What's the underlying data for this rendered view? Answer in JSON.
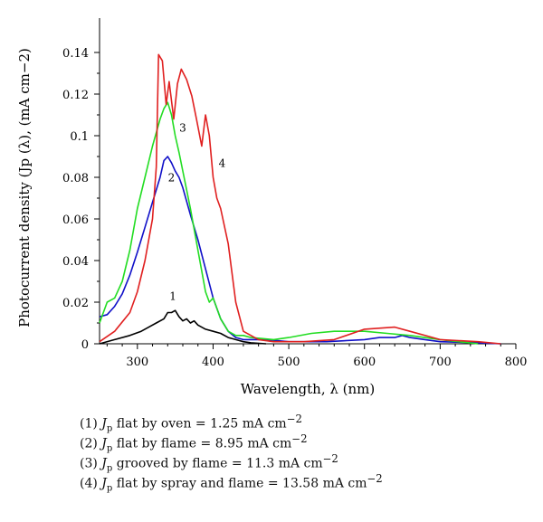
{
  "chart_data": {
    "type": "line",
    "xlabel": "Wavelength, λ (nm)",
    "ylabel": "Photocurrent density (Jp (λ), (mA cm−2)",
    "xlim": [
      250,
      800
    ],
    "ylim": [
      0,
      0.15
    ],
    "xticks": [
      "300",
      "400",
      "500",
      "600",
      "700",
      "800"
    ],
    "xtick_values": [
      300,
      400,
      500,
      600,
      700,
      800
    ],
    "yticks": [
      "0",
      "0.02",
      "0.04",
      "0.06",
      "0.08",
      "0.1",
      "0.12",
      "0.14"
    ],
    "ytick_values": [
      0,
      0.02,
      0.04,
      0.06,
      0.08,
      0.1,
      0.12,
      0.14
    ],
    "grid": false,
    "series": [
      {
        "name": "1",
        "color": "#000000",
        "x": [
          250,
          270,
          290,
          305,
          315,
          325,
          335,
          340,
          345,
          350,
          355,
          360,
          365,
          370,
          375,
          380,
          390,
          400,
          410,
          420,
          430,
          440,
          450,
          470
        ],
        "y": [
          0.0,
          0.002,
          0.004,
          0.006,
          0.008,
          0.01,
          0.012,
          0.015,
          0.015,
          0.016,
          0.013,
          0.011,
          0.012,
          0.01,
          0.011,
          0.009,
          0.007,
          0.006,
          0.005,
          0.003,
          0.002,
          0.001,
          0.0005,
          0.0
        ]
      },
      {
        "name": "2",
        "color": "#1010c8",
        "x": [
          250,
          260,
          270,
          280,
          290,
          300,
          310,
          320,
          330,
          335,
          340,
          345,
          350,
          355,
          360,
          370,
          380,
          390,
          400,
          410,
          420,
          430,
          440,
          450,
          470,
          500,
          550,
          600,
          620,
          640,
          650,
          660,
          680,
          700,
          750,
          780
        ],
        "y": [
          0.013,
          0.014,
          0.018,
          0.024,
          0.033,
          0.044,
          0.056,
          0.068,
          0.08,
          0.088,
          0.09,
          0.087,
          0.083,
          0.08,
          0.075,
          0.062,
          0.05,
          0.036,
          0.022,
          0.012,
          0.006,
          0.003,
          0.002,
          0.002,
          0.002,
          0.001,
          0.001,
          0.002,
          0.003,
          0.003,
          0.004,
          0.003,
          0.002,
          0.001,
          0.0005,
          0.0
        ]
      },
      {
        "name": "3",
        "color": "#22dd22",
        "x": [
          250,
          260,
          270,
          280,
          290,
          300,
          310,
          320,
          330,
          335,
          340,
          345,
          350,
          355,
          360,
          370,
          380,
          390,
          395,
          400,
          410,
          420,
          430,
          440,
          450,
          480,
          500,
          530,
          560,
          600,
          630,
          660,
          700,
          750
        ],
        "y": [
          0.01,
          0.02,
          0.022,
          0.03,
          0.045,
          0.065,
          0.08,
          0.095,
          0.108,
          0.113,
          0.116,
          0.11,
          0.1,
          0.092,
          0.083,
          0.065,
          0.045,
          0.025,
          0.02,
          0.022,
          0.012,
          0.006,
          0.004,
          0.004,
          0.003,
          0.002,
          0.003,
          0.005,
          0.006,
          0.006,
          0.005,
          0.004,
          0.002,
          0.0
        ]
      },
      {
        "name": "4",
        "color": "#e02020",
        "x": [
          250,
          270,
          290,
          300,
          310,
          320,
          325,
          328,
          333,
          338,
          342,
          348,
          353,
          358,
          365,
          372,
          378,
          385,
          390,
          395,
          400,
          405,
          410,
          420,
          430,
          440,
          460,
          480,
          520,
          560,
          600,
          640,
          660,
          700,
          750,
          780
        ],
        "y": [
          0.001,
          0.006,
          0.015,
          0.025,
          0.04,
          0.06,
          0.085,
          0.139,
          0.136,
          0.115,
          0.126,
          0.108,
          0.125,
          0.132,
          0.127,
          0.119,
          0.108,
          0.095,
          0.11,
          0.1,
          0.08,
          0.07,
          0.065,
          0.048,
          0.02,
          0.006,
          0.002,
          0.001,
          0.001,
          0.002,
          0.007,
          0.008,
          0.006,
          0.002,
          0.001,
          0.0
        ]
      }
    ],
    "curve_labels": [
      {
        "text": "1",
        "x": 347,
        "y": 0.021
      },
      {
        "text": "2",
        "x": 345,
        "y": 0.078
      },
      {
        "text": "3",
        "x": 360,
        "y": 0.102
      },
      {
        "text": "4",
        "x": 412,
        "y": 0.085
      }
    ],
    "legend_entries": [
      {
        "num": "(1)",
        "sym": "J",
        "sub": "p",
        "text": "flat by oven = 1.25 mA cm",
        "exp": "−2"
      },
      {
        "num": "(2)",
        "sym": "J",
        "sub": "p",
        "text": "flat by flame = 8.95 mA cm",
        "exp": "−2"
      },
      {
        "num": "(3)",
        "sym": "J",
        "sub": "p",
        "text": "grooved by flame = 11.3 mA cm",
        "exp": "−2"
      },
      {
        "num": "(4)",
        "sym": "J",
        "sub": "p",
        "text": "flat by spray and flame = 13.58 mA cm",
        "exp": "−2"
      }
    ],
    "legend_position": "bottom"
  }
}
